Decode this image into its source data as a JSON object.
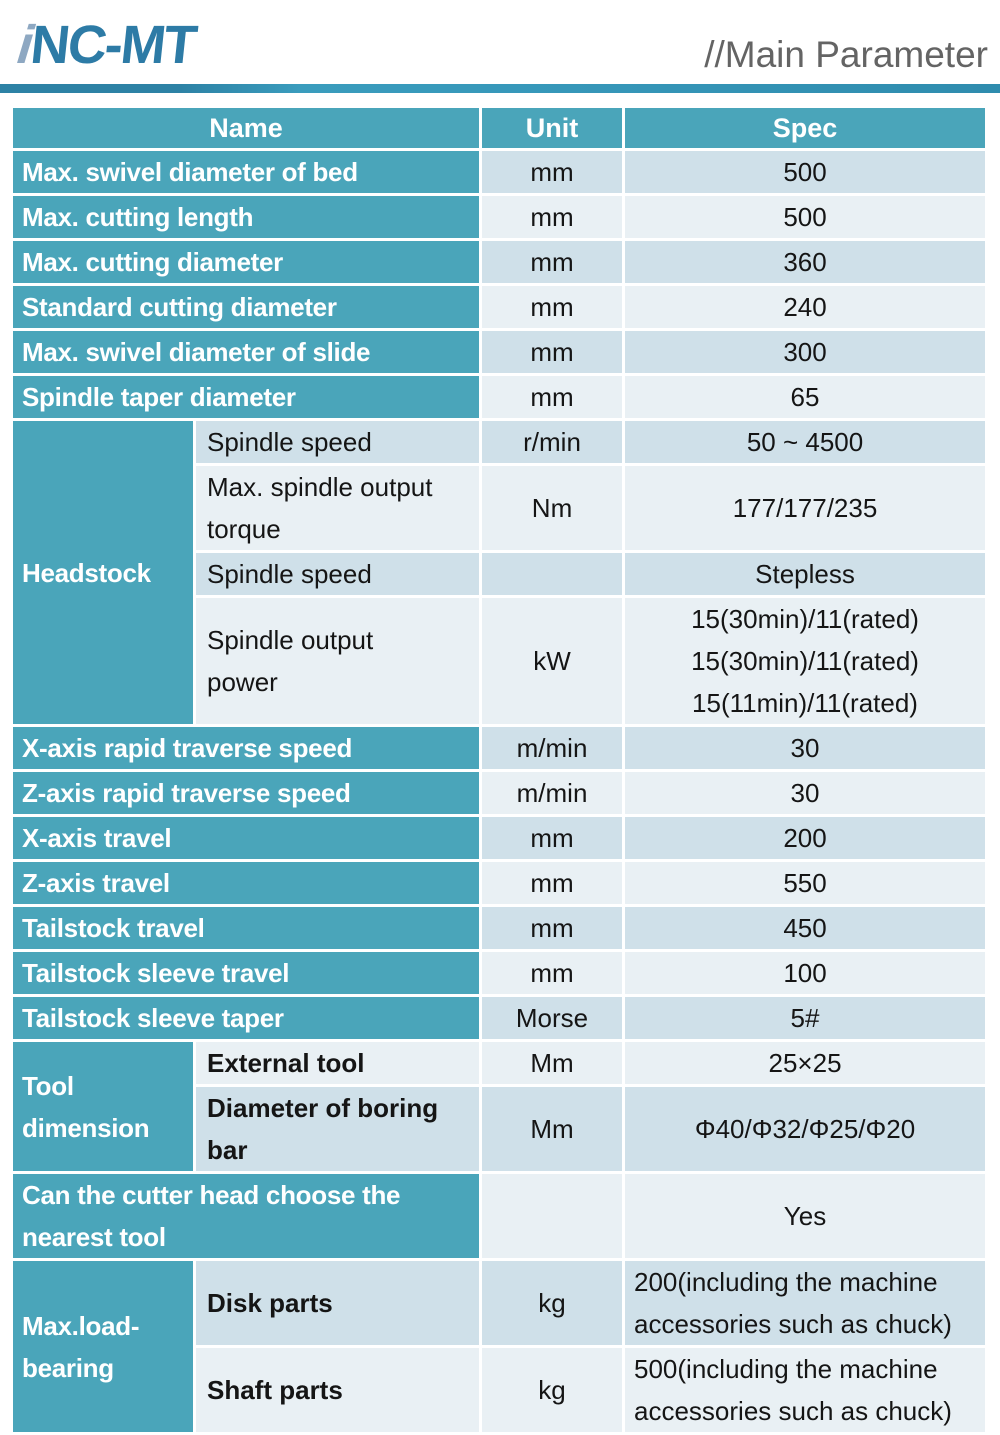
{
  "logo": {
    "part_i": "i",
    "part_nc": "NC",
    "part_mt": "-MT"
  },
  "header": {
    "title": "//Main Parameter"
  },
  "colors": {
    "teal_cell": "#4AA5BA",
    "row_dark": "#CFE0E9",
    "row_light": "#E9F0F4",
    "accent_rule": "#3697B9",
    "title_gray": "#646464",
    "logo_blue": "#2D7BA6",
    "logo_light_blue": "#8EA8C2",
    "text_dark": "#151515"
  },
  "table": {
    "columns": {
      "name": "Name",
      "unit": "Unit",
      "spec": "Spec"
    },
    "rows": [
      {
        "name": "Max. swivel diameter of bed",
        "unit": "mm",
        "spec": "500"
      },
      {
        "name": "Max. cutting length",
        "unit": "mm",
        "spec": "500"
      },
      {
        "name": "Max. cutting diameter",
        "unit": "mm",
        "spec": "360"
      },
      {
        "name": "Standard cutting diameter",
        "unit": "mm",
        "spec": "240"
      },
      {
        "name": "Max. swivel diameter of slide",
        "unit": "mm",
        "spec": "300"
      },
      {
        "name": "Spindle taper diameter",
        "unit": "mm",
        "spec": "65"
      },
      {
        "group": "Headstock",
        "sub": "Spindle speed",
        "unit": "r/min",
        "spec": "50 ~ 4500"
      },
      {
        "sub": "Max. spindle output\ntorque",
        "unit": "Nm",
        "spec": "177/177/235"
      },
      {
        "sub": "Spindle speed",
        "unit": "",
        "spec": "Stepless"
      },
      {
        "sub": "Spindle output\npower",
        "unit": "kW",
        "spec": "15(30min)/11(rated)\n15(30min)/11(rated)\n15(11min)/11(rated)"
      },
      {
        "name": "X-axis rapid traverse speed",
        "unit": "m/min",
        "spec": "30"
      },
      {
        "name": "Z-axis rapid traverse speed",
        "unit": "m/min",
        "spec": "30"
      },
      {
        "name": "X-axis travel",
        "unit": "mm",
        "spec": "200"
      },
      {
        "name": "Z-axis travel",
        "unit": "mm",
        "spec": "550"
      },
      {
        "name": "Tailstock travel",
        "unit": "mm",
        "spec": "450"
      },
      {
        "name": "Tailstock sleeve travel",
        "unit": "mm",
        "spec": "100"
      },
      {
        "name": "Tailstock sleeve taper",
        "unit": "Morse",
        "spec": "5#"
      },
      {
        "group": "Tool\ndimension",
        "sub": "External tool",
        "unit": "Mm",
        "spec": "25×25"
      },
      {
        "sub": "Diameter of boring\nbar",
        "unit": "Mm",
        "spec": "Φ40/Φ32/Φ25/Φ20"
      },
      {
        "name": "Can the cutter head choose the\nnearest tool",
        "unit": "",
        "spec": "Yes"
      },
      {
        "group": "Max.load-\nbearing",
        "sub": "Disk parts",
        "unit": "kg",
        "spec": "200(including the machine accessories such as chuck)"
      },
      {
        "sub": "Shaft parts",
        "unit": "kg",
        "spec": "500(including the machine accessories such as chuck)"
      }
    ]
  }
}
